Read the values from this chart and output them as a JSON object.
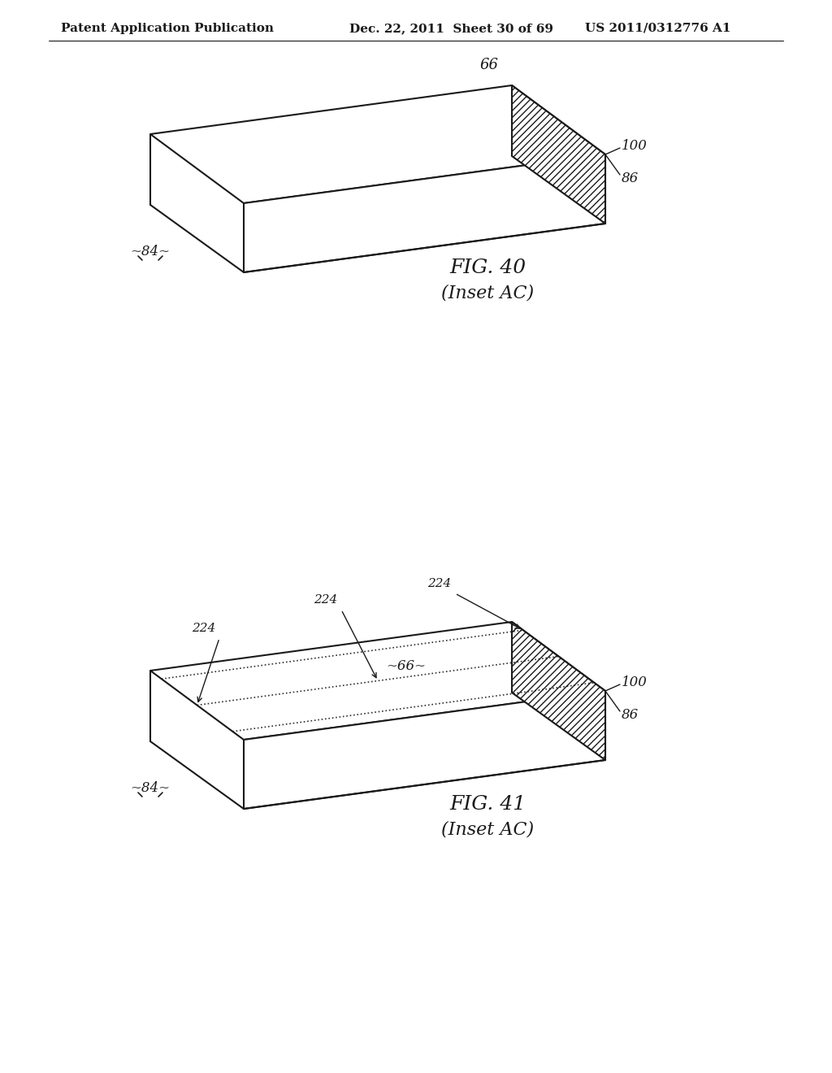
{
  "bg_color": "#ffffff",
  "line_color": "#1a1a1a",
  "hatch_color": "#1a1a1a",
  "header_left": "Patent Application Publication",
  "header_mid": "Dec. 22, 2011  Sheet 30 of 69",
  "header_right": "US 2011/0312776 A1",
  "fig40_label": "FIG. 40",
  "fig40_sub": "(Inset AC)",
  "fig41_label": "FIG. 41",
  "fig41_sub": "(Inset AC)",
  "label_66_top": "66",
  "label_100_top": "100",
  "label_86_top": "86",
  "label_84_top": "~84~",
  "label_66_bot": "~66~",
  "label_100_bot": "100",
  "label_86_bot": "86",
  "label_84_bot": "~84~",
  "label_224_bot1": "224",
  "label_224_bot2": "224",
  "label_224_bot3": "224"
}
